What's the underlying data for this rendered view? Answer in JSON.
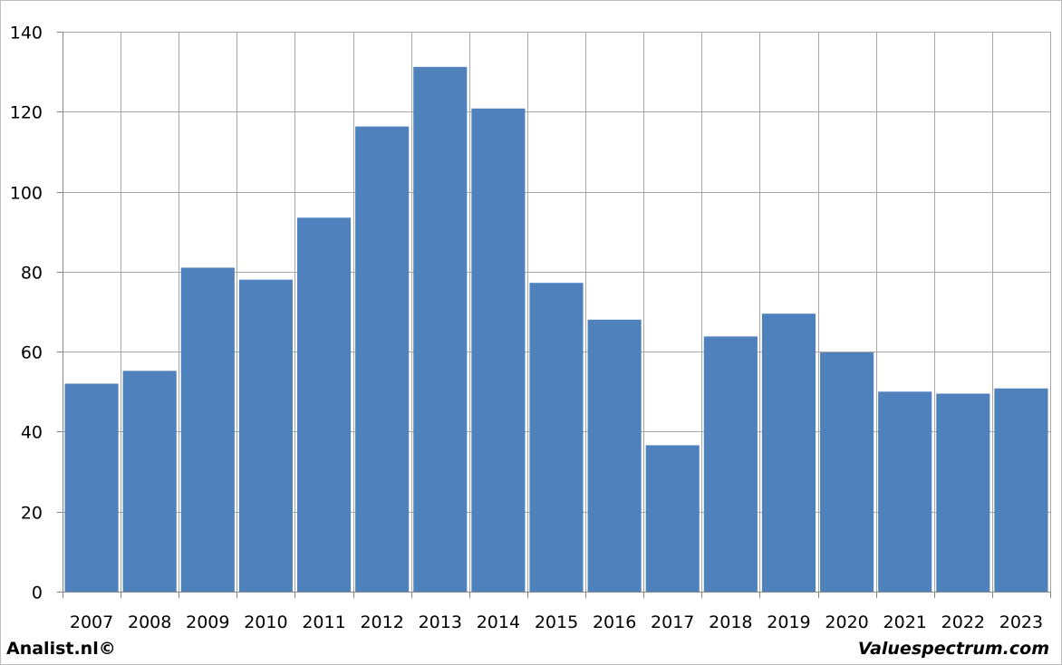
{
  "chart_data": {
    "type": "bar",
    "categories": [
      "2007",
      "2008",
      "2009",
      "2010",
      "2011",
      "2012",
      "2013",
      "2014",
      "2015",
      "2016",
      "2017",
      "2018",
      "2019",
      "2020",
      "2021",
      "2022",
      "2023"
    ],
    "values": [
      52,
      55.2,
      81,
      78,
      93.5,
      116.3,
      131.2,
      120.8,
      77.2,
      68,
      36.6,
      63.8,
      69.5,
      59.8,
      50,
      49.5,
      50.8
    ],
    "yticks": [
      "0",
      "20",
      "40",
      "60",
      "80",
      "100",
      "120",
      "140"
    ],
    "ylim": [
      0,
      140
    ],
    "grid": true,
    "legend": "none",
    "bar_color": "#4f81bd",
    "grid_color": "#a6a6a6"
  },
  "footer": {
    "left": "Analist.nl©",
    "right": "Valuespectrum.com"
  }
}
